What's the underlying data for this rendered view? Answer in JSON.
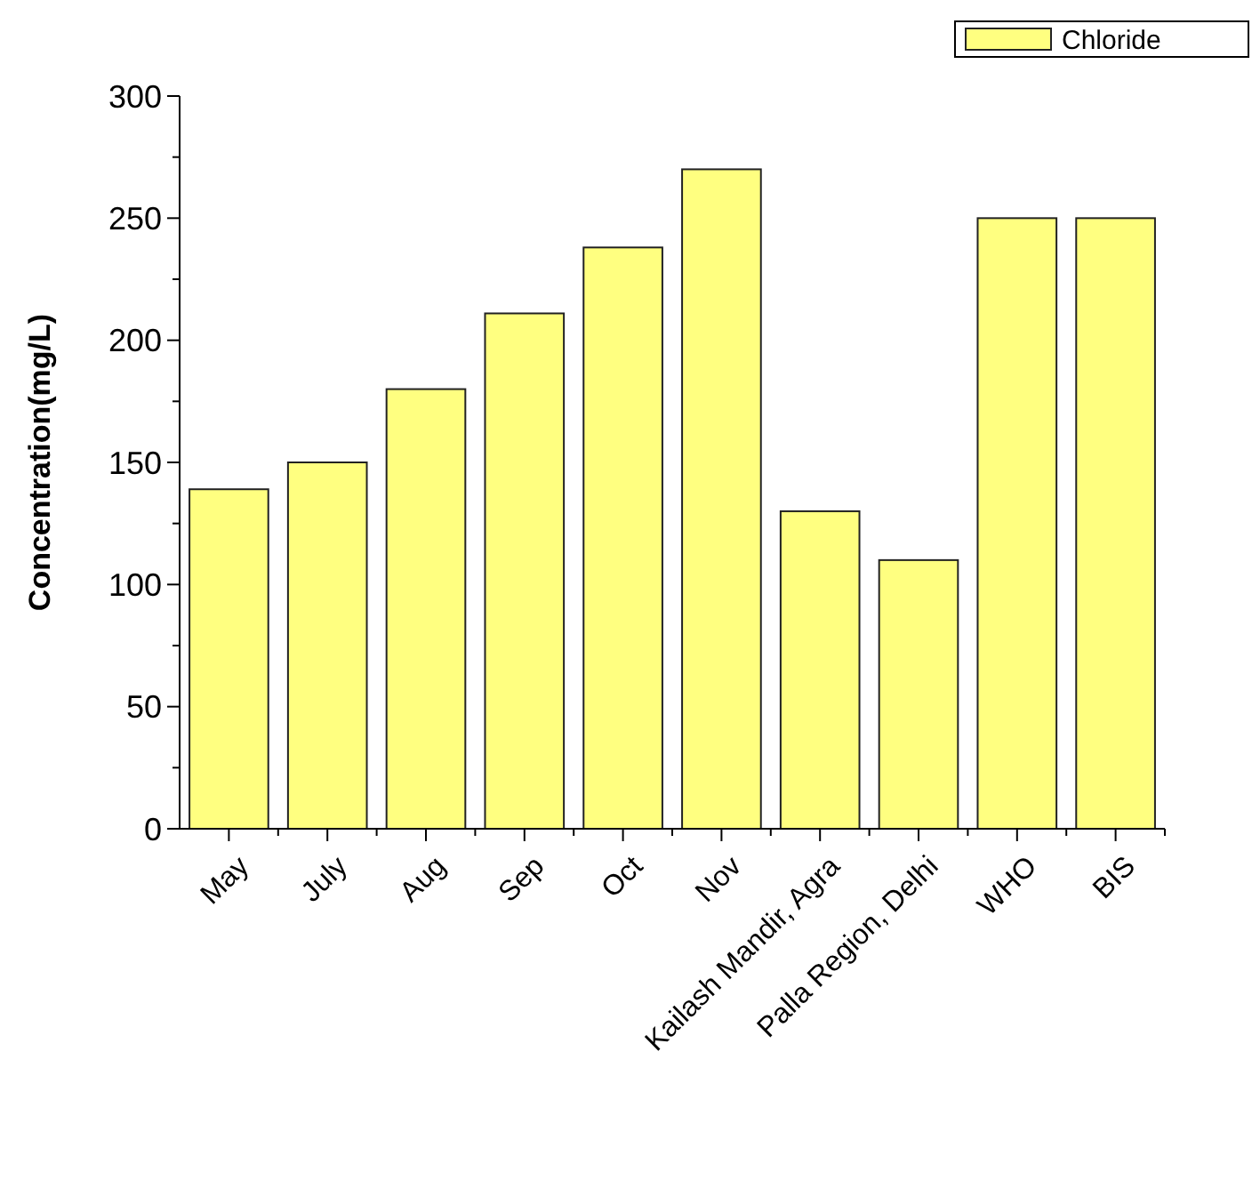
{
  "chart_data": {
    "type": "bar",
    "ylabel": "Concentration(mg/L)",
    "categories": [
      "May",
      "July",
      "Aug",
      "Sep",
      "Oct",
      "Nov",
      "Kailash Mandir, Agra",
      "Palla Region, Delhi",
      "WHO",
      "BIS"
    ],
    "series": [
      {
        "name": "Chloride",
        "color": "#ffff80",
        "values": [
          139,
          150,
          180,
          211,
          238,
          270,
          130,
          110,
          250,
          250
        ]
      }
    ],
    "ylim": [
      0,
      300
    ],
    "yticks": [
      0,
      {
        "value": 25,
        "label": null
      },
      50,
      {
        "value": 75,
        "label": null
      },
      100,
      {
        "value": 125,
        "label": null
      },
      150,
      {
        "value": 175,
        "label": null
      },
      200,
      {
        "value": 225,
        "label": null
      },
      250,
      {
        "value": 275,
        "label": null
      },
      300
    ],
    "grid": false,
    "legend": "top right"
  }
}
